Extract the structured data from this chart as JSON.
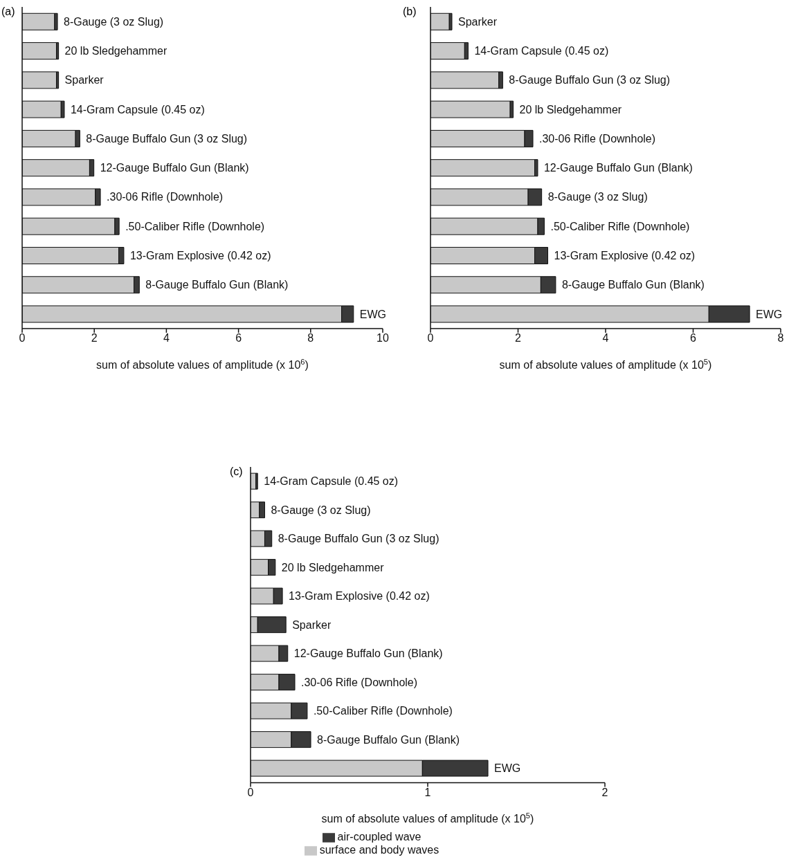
{
  "chart_data": [
    {
      "type": "bar",
      "title": "(a)",
      "orientation": "horizontal",
      "stacked": true,
      "xlabel": "sum of absolute values of amplitude (x 10$^{6}$)",
      "xlim": [
        0,
        10
      ],
      "xticks": [
        0,
        2,
        4,
        6,
        8,
        10
      ],
      "tick_labels": "x",
      "grid": false,
      "legend": false,
      "categories": [
        "8-Gauge (3 oz Slug)",
        "20 lb Sledgehammer",
        "Sparker",
        "14-Gram Capsule (0.45 oz)",
        "8-Gauge Buffalo Gun (3 oz Slug)",
        "12-Gauge Buffalo Gun (Blank)",
        ".30-06 Rifle (Downhole)",
        ".50-Caliber Rifle (Downhole)",
        "13-Gram Explosive (0.42 oz)",
        "8-Gauge Buffalo Gun (Blank)",
        "EWG"
      ],
      "series": [
        {
          "color": "#c8c8c8",
          "values": [
            0.9,
            0.95,
            0.95,
            1.08,
            1.48,
            1.87,
            2.03,
            2.57,
            2.68,
            3.1,
            8.86
          ]
        },
        {
          "color": "#3a3a3a",
          "values": [
            0.08,
            0.06,
            0.06,
            0.09,
            0.12,
            0.12,
            0.14,
            0.12,
            0.14,
            0.15,
            0.33
          ]
        }
      ]
    },
    {
      "type": "bar",
      "title": "(b)",
      "orientation": "horizontal",
      "stacked": true,
      "xlabel": "sum of absolute values of amplitude (x 10$^{5}$)",
      "xlim": [
        0,
        8
      ],
      "xticks": [
        0,
        2,
        4,
        6,
        8
      ],
      "tick_labels": "x",
      "grid": false,
      "legend": false,
      "categories": [
        "Sparker",
        "14-Gram Capsule (0.45 oz)",
        "8-Gauge Buffalo Gun (3 oz Slug)",
        "20 lb Sledgehammer",
        ".30-06 Rifle (Downhole)",
        "12-Gauge Buffalo Gun (Blank)",
        "8-Gauge (3 oz Slug)",
        ".50-Caliber Rifle (Downhole)",
        "13-Gram Explosive (0.42 oz)",
        "8-Gauge Buffalo Gun (Blank)",
        "EWG"
      ],
      "series": [
        {
          "color": "#c8c8c8",
          "values": [
            0.43,
            0.78,
            1.56,
            1.82,
            2.15,
            2.38,
            2.23,
            2.45,
            2.38,
            2.52,
            6.36
          ]
        },
        {
          "color": "#3a3a3a",
          "values": [
            0.06,
            0.08,
            0.09,
            0.07,
            0.19,
            0.07,
            0.31,
            0.15,
            0.3,
            0.34,
            0.93
          ]
        }
      ]
    },
    {
      "type": "bar",
      "title": "(c)",
      "orientation": "horizontal",
      "stacked": true,
      "xlabel": "sum of absolute values of amplitude (x 10$^{5}$)",
      "xlim": [
        0,
        2
      ],
      "xticks": [
        0,
        1,
        2
      ],
      "tick_labels": "x",
      "grid": false,
      "legend": "bottom",
      "categories": [
        "14-Gram Capsule (0.45 oz)",
        "8-Gauge (3 oz Slug)",
        "8-Gauge Buffalo Gun (3 oz Slug)",
        "20 lb Sledgehammer",
        "13-Gram Explosive (0.42 oz)",
        "Sparker",
        "12-Gauge Buffalo Gun (Blank)",
        ".30-06 Rifle (Downhole)",
        ".50-Caliber Rifle (Downhole)",
        "8-Gauge Buffalo Gun (Blank)",
        "EWG"
      ],
      "series": [
        {
          "name": "surface and body waves",
          "color": "#c8c8c8",
          "values": [
            0.03,
            0.05,
            0.08,
            0.1,
            0.13,
            0.04,
            0.16,
            0.16,
            0.23,
            0.23,
            0.97
          ]
        },
        {
          "name": "air-coupled wave",
          "color": "#3a3a3a",
          "values": [
            0.01,
            0.03,
            0.04,
            0.04,
            0.05,
            0.16,
            0.05,
            0.09,
            0.09,
            0.11,
            0.37
          ]
        }
      ]
    }
  ]
}
